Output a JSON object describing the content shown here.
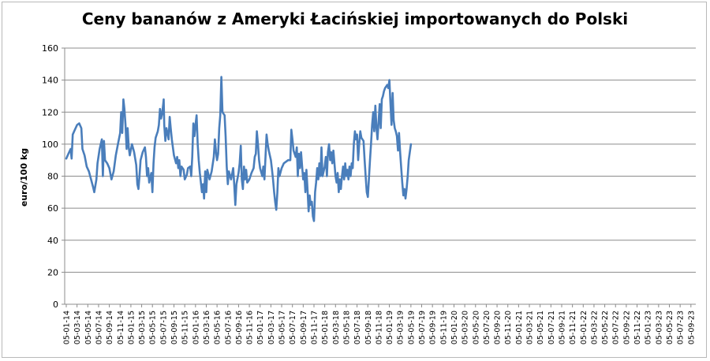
{
  "chart_data": {
    "type": "line",
    "title": "Ceny bananów z Ameryki Łacińskiej importowanych do Polski",
    "ylabel": "euro/100 kg",
    "xlabel": "",
    "ylim": [
      0,
      160
    ],
    "yticks": [
      0,
      20,
      40,
      60,
      80,
      100,
      120,
      140,
      160
    ],
    "grid": true,
    "legend": "none",
    "colors": {
      "line": "#4a7ebb",
      "grid": "#8c8c8c",
      "axis": "#8c8c8c"
    },
    "categories": [
      "05-01-14",
      "05-03-14",
      "05-05-14",
      "05-07-14",
      "05-09-14",
      "05-11-14",
      "05-01-15",
      "05-03-15",
      "05-05-15",
      "05-07-15",
      "05-09-15",
      "05-11-15",
      "05-01-16",
      "05-03-16",
      "05-05-16",
      "05-07-16",
      "05-09-16",
      "05-11-16",
      "05-01-17",
      "05-03-17",
      "05-05-17",
      "05-07-17",
      "05-09-17",
      "05-11-17",
      "05-01-18",
      "05-03-18",
      "05-05-18",
      "05-07-18",
      "05-09-18",
      "05-11-18",
      "05-01-19",
      "05-03-19",
      "05-05-19",
      "05-07-19",
      "05-09-19",
      "05-11-19",
      "05-01-20",
      "05-03-20",
      "05-05-20",
      "05-07-20",
      "05-09-20",
      "05-11-20",
      "05-01-21",
      "05-03-21",
      "05-05-21",
      "05-07-21",
      "05-09-21",
      "05-11-21",
      "05-01-22",
      "05-03-22",
      "05-05-22",
      "05-07-22",
      "05-09-22",
      "05-11-22",
      "05-01-23",
      "05-03-23",
      "05-05-23",
      "05-07-23",
      "05-09-23"
    ],
    "series": [
      {
        "values": [
          [
            0,
            91
          ],
          [
            0.2,
            94
          ],
          [
            0.4,
            97
          ],
          [
            0.5,
            91
          ],
          [
            0.6,
            106
          ],
          [
            0.8,
            109
          ],
          [
            1.0,
            112
          ],
          [
            1.2,
            113
          ],
          [
            1.4,
            110
          ],
          [
            1.5,
            97
          ],
          [
            1.7,
            93
          ],
          [
            1.9,
            86
          ],
          [
            2.1,
            83
          ],
          [
            2.3,
            78
          ],
          [
            2.5,
            73
          ],
          [
            2.6,
            70
          ],
          [
            2.8,
            78
          ],
          [
            2.9,
            88
          ],
          [
            3.1,
            97
          ],
          [
            3.3,
            103
          ],
          [
            3.4,
            80
          ],
          [
            3.5,
            102
          ],
          [
            3.6,
            90
          ],
          [
            3.8,
            88
          ],
          [
            4.0,
            85
          ],
          [
            4.2,
            78
          ],
          [
            4.4,
            83
          ],
          [
            4.6,
            93
          ],
          [
            4.8,
            100
          ],
          [
            5.0,
            107
          ],
          [
            5.1,
            120
          ],
          [
            5.2,
            107
          ],
          [
            5.3,
            128
          ],
          [
            5.4,
            122
          ],
          [
            5.5,
            112
          ],
          [
            5.6,
            97
          ],
          [
            5.7,
            110
          ],
          [
            5.8,
            98
          ],
          [
            5.9,
            93
          ],
          [
            6.1,
            100
          ],
          [
            6.3,
            95
          ],
          [
            6.5,
            87
          ],
          [
            6.6,
            75
          ],
          [
            6.7,
            72
          ],
          [
            6.8,
            80
          ],
          [
            6.9,
            90
          ],
          [
            7.1,
            95
          ],
          [
            7.3,
            98
          ],
          [
            7.4,
            92
          ],
          [
            7.5,
            80
          ],
          [
            7.6,
            85
          ],
          [
            7.7,
            76
          ],
          [
            7.9,
            82
          ],
          [
            8.0,
            70
          ],
          [
            8.1,
            88
          ],
          [
            8.2,
            98
          ],
          [
            8.3,
            104
          ],
          [
            8.5,
            108
          ],
          [
            8.6,
            112
          ],
          [
            8.7,
            122
          ],
          [
            8.8,
            116
          ],
          [
            8.9,
            119
          ],
          [
            9.0,
            125
          ],
          [
            9.05,
            128
          ],
          [
            9.1,
            112
          ],
          [
            9.2,
            102
          ],
          [
            9.3,
            110
          ],
          [
            9.4,
            107
          ],
          [
            9.5,
            103
          ],
          [
            9.6,
            117
          ],
          [
            9.7,
            110
          ],
          [
            9.8,
            103
          ],
          [
            10.0,
            93
          ],
          [
            10.2,
            88
          ],
          [
            10.3,
            92
          ],
          [
            10.4,
            85
          ],
          [
            10.5,
            90
          ],
          [
            10.6,
            80
          ],
          [
            10.7,
            86
          ],
          [
            10.9,
            84
          ],
          [
            11.0,
            78
          ],
          [
            11.2,
            81
          ],
          [
            11.3,
            85
          ],
          [
            11.5,
            86
          ],
          [
            11.6,
            80
          ],
          [
            11.7,
            92
          ],
          [
            11.8,
            113
          ],
          [
            11.9,
            105
          ],
          [
            12.0,
            112
          ],
          [
            12.1,
            118
          ],
          [
            12.2,
            100
          ],
          [
            12.3,
            90
          ],
          [
            12.4,
            82
          ],
          [
            12.6,
            70
          ],
          [
            12.7,
            75
          ],
          [
            12.8,
            66
          ],
          [
            12.9,
            83
          ],
          [
            13.0,
            70
          ],
          [
            13.1,
            84
          ],
          [
            13.3,
            78
          ],
          [
            13.5,
            83
          ],
          [
            13.7,
            92
          ],
          [
            13.8,
            103
          ],
          [
            13.9,
            95
          ],
          [
            14.0,
            90
          ],
          [
            14.1,
            94
          ],
          [
            14.2,
            110
          ],
          [
            14.3,
            118
          ],
          [
            14.35,
            130
          ],
          [
            14.4,
            142
          ],
          [
            14.5,
            120
          ],
          [
            14.7,
            118
          ],
          [
            14.8,
            105
          ],
          [
            14.9,
            86
          ],
          [
            15.0,
            75
          ],
          [
            15.1,
            83
          ],
          [
            15.3,
            78
          ],
          [
            15.5,
            85
          ],
          [
            15.6,
            74
          ],
          [
            15.7,
            62
          ],
          [
            15.8,
            75
          ],
          [
            16.0,
            82
          ],
          [
            16.1,
            88
          ],
          [
            16.2,
            99
          ],
          [
            16.3,
            78
          ],
          [
            16.4,
            72
          ],
          [
            16.5,
            86
          ],
          [
            16.6,
            78
          ],
          [
            16.7,
            84
          ],
          [
            16.8,
            76
          ],
          [
            17.0,
            78
          ],
          [
            17.2,
            82
          ],
          [
            17.4,
            85
          ],
          [
            17.5,
            92
          ],
          [
            17.6,
            94
          ],
          [
            17.7,
            108
          ],
          [
            17.8,
            100
          ],
          [
            17.9,
            90
          ],
          [
            18.0,
            85
          ],
          [
            18.2,
            80
          ],
          [
            18.3,
            86
          ],
          [
            18.4,
            78
          ],
          [
            18.6,
            106
          ],
          [
            18.7,
            100
          ],
          [
            18.8,
            96
          ],
          [
            19.0,
            90
          ],
          [
            19.1,
            84
          ],
          [
            19.2,
            78
          ],
          [
            19.3,
            70
          ],
          [
            19.4,
            64
          ],
          [
            19.5,
            59
          ],
          [
            19.6,
            70
          ],
          [
            19.7,
            85
          ],
          [
            19.8,
            80
          ],
          [
            20.0,
            85
          ],
          [
            20.2,
            88
          ],
          [
            20.4,
            89
          ],
          [
            20.6,
            90
          ],
          [
            20.8,
            90
          ],
          [
            20.9,
            109
          ],
          [
            21.0,
            103
          ],
          [
            21.1,
            96
          ],
          [
            21.3,
            92
          ],
          [
            21.4,
            98
          ],
          [
            21.5,
            80
          ],
          [
            21.6,
            94
          ],
          [
            21.7,
            85
          ],
          [
            21.8,
            95
          ],
          [
            21.9,
            86
          ],
          [
            22.0,
            78
          ],
          [
            22.1,
            82
          ],
          [
            22.2,
            70
          ],
          [
            22.3,
            84
          ],
          [
            22.4,
            72
          ],
          [
            22.5,
            58
          ],
          [
            22.6,
            68
          ],
          [
            22.7,
            62
          ],
          [
            22.8,
            64
          ],
          [
            22.9,
            55
          ],
          [
            23.0,
            52
          ],
          [
            23.1,
            70
          ],
          [
            23.2,
            76
          ],
          [
            23.3,
            85
          ],
          [
            23.4,
            78
          ],
          [
            23.5,
            88
          ],
          [
            23.6,
            80
          ],
          [
            23.7,
            98
          ],
          [
            23.8,
            80
          ],
          [
            24.0,
            86
          ],
          [
            24.1,
            92
          ],
          [
            24.2,
            80
          ],
          [
            24.3,
            95
          ],
          [
            24.4,
            100
          ],
          [
            24.5,
            90
          ],
          [
            24.6,
            95
          ],
          [
            24.7,
            88
          ],
          [
            24.8,
            96
          ],
          [
            25.0,
            80
          ],
          [
            25.1,
            76
          ],
          [
            25.2,
            82
          ],
          [
            25.3,
            70
          ],
          [
            25.4,
            78
          ],
          [
            25.5,
            72
          ],
          [
            25.6,
            80
          ],
          [
            25.7,
            86
          ],
          [
            25.8,
            78
          ],
          [
            25.9,
            88
          ],
          [
            26.0,
            80
          ],
          [
            26.1,
            84
          ],
          [
            26.2,
            78
          ],
          [
            26.3,
            86
          ],
          [
            26.4,
            80
          ],
          [
            26.5,
            88
          ],
          [
            26.6,
            85
          ],
          [
            26.7,
            100
          ],
          [
            26.8,
            108
          ],
          [
            26.9,
            103
          ],
          [
            27.0,
            106
          ],
          [
            27.1,
            90
          ],
          [
            27.2,
            100
          ],
          [
            27.3,
            108
          ],
          [
            27.4,
            104
          ],
          [
            27.6,
            102
          ],
          [
            27.7,
            90
          ],
          [
            27.8,
            80
          ],
          [
            27.9,
            70
          ],
          [
            28.0,
            67
          ],
          [
            28.1,
            78
          ],
          [
            28.2,
            90
          ],
          [
            28.3,
            100
          ],
          [
            28.4,
            112
          ],
          [
            28.5,
            120
          ],
          [
            28.6,
            108
          ],
          [
            28.7,
            124
          ],
          [
            28.8,
            110
          ],
          [
            28.9,
            103
          ],
          [
            29.0,
            114
          ],
          [
            29.1,
            125
          ],
          [
            29.2,
            110
          ],
          [
            29.3,
            128
          ],
          [
            29.4,
            130
          ],
          [
            29.5,
            133
          ],
          [
            29.6,
            135
          ],
          [
            29.7,
            136
          ],
          [
            29.8,
            137
          ],
          [
            29.9,
            135
          ],
          [
            30.0,
            140
          ],
          [
            30.1,
            126
          ],
          [
            30.2,
            112
          ],
          [
            30.3,
            132
          ],
          [
            30.4,
            115
          ],
          [
            30.5,
            110
          ],
          [
            30.6,
            108
          ],
          [
            30.7,
            105
          ],
          [
            30.8,
            96
          ],
          [
            30.9,
            107
          ],
          [
            31.0,
            95
          ],
          [
            31.1,
            85
          ],
          [
            31.2,
            76
          ],
          [
            31.3,
            68
          ],
          [
            31.4,
            72
          ],
          [
            31.5,
            66
          ],
          [
            31.6,
            72
          ],
          [
            31.7,
            80
          ],
          [
            31.8,
            90
          ],
          [
            31.9,
            95
          ],
          [
            32.0,
            100
          ]
        ]
      }
    ]
  }
}
